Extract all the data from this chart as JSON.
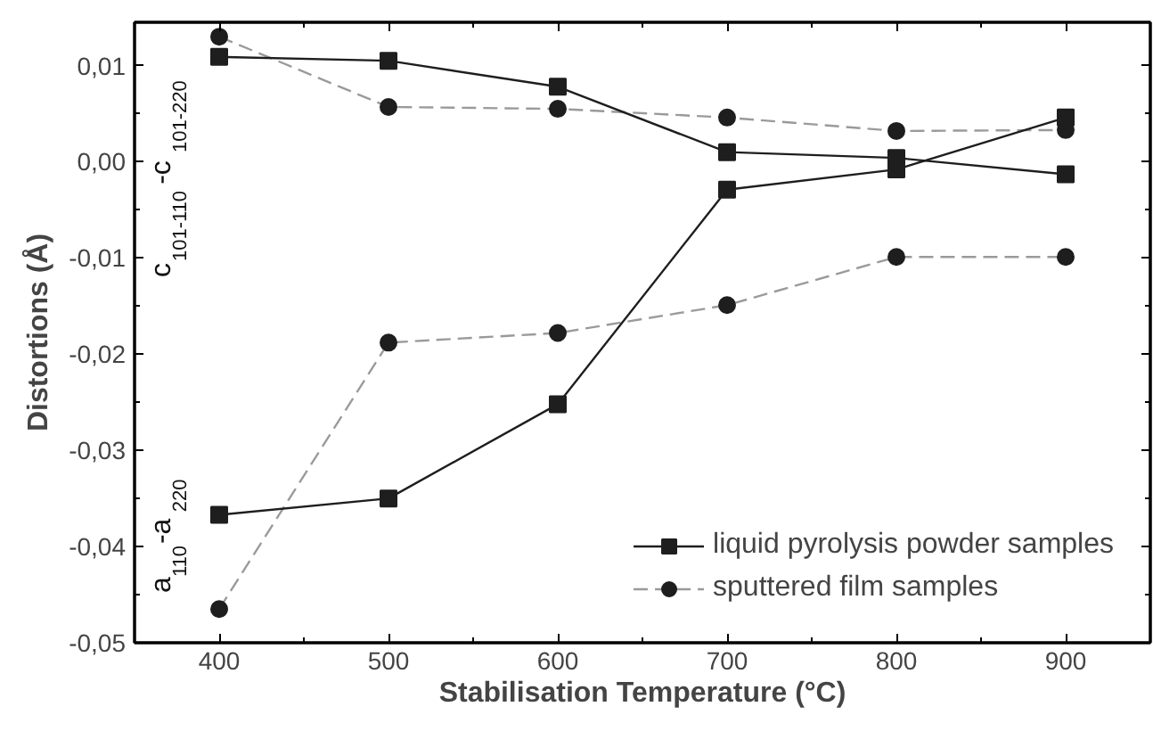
{
  "chart_data": {
    "type": "line",
    "xlabel": "Stabilisation Temperature (°C)",
    "ylabel": "Distortions (Å)",
    "x": [
      400,
      500,
      600,
      700,
      800,
      900
    ],
    "series": [
      {
        "name": "liquid pyrolysis powder samples",
        "color": "#1e1e1e",
        "marker": "square",
        "line_style": "solid",
        "values": [
          0.0109,
          0.0105,
          0.0078,
          0.001,
          0.0004,
          -0.0013
        ]
      },
      {
        "name": "sputtered film samples",
        "color": "#1e1e1e",
        "marker": "circle",
        "line_style": "dashed",
        "values": [
          0.013,
          0.0057,
          0.0055,
          0.0046,
          0.0032,
          0.0033
        ]
      },
      {
        "color": "#1e1e1e",
        "marker": "square",
        "line_style": "solid",
        "values": [
          -0.0367,
          -0.035,
          -0.0252,
          -0.0029,
          -0.0008,
          0.0046
        ]
      },
      {
        "color": "#1e1e1e",
        "marker": "circle",
        "line_style": "dashed",
        "values": [
          -0.0465,
          -0.0188,
          -0.0178,
          -0.0149,
          -0.0099,
          -0.0099
        ]
      }
    ],
    "xlim": [
      350,
      950
    ],
    "ylim": [
      -0.05,
      0.0145
    ],
    "xticks": [
      400,
      500,
      600,
      700,
      800,
      900,
      {
        "value": 450,
        "label": null
      },
      {
        "value": 550,
        "label": null
      },
      {
        "value": 650,
        "label": null
      },
      {
        "value": 750,
        "label": null
      },
      {
        "value": 850,
        "label": null
      }
    ],
    "yticks": [
      {
        "value": -0.05,
        "label": "-0,05"
      },
      {
        "value": -0.04,
        "label": "-0,04"
      },
      {
        "value": -0.03,
        "label": "-0,03"
      },
      {
        "value": -0.02,
        "label": "-0,02"
      },
      {
        "value": -0.01,
        "label": "-0,01"
      },
      {
        "value": 0.0,
        "label": "0,00"
      },
      {
        "value": 0.01,
        "label": "0,01"
      },
      {
        "value": -0.045,
        "label": null
      },
      {
        "value": -0.035,
        "label": null
      },
      {
        "value": -0.025,
        "label": null
      },
      {
        "value": -0.015,
        "label": null
      },
      {
        "value": -0.005,
        "label": null
      },
      {
        "value": 0.005,
        "label": null
      }
    ],
    "annotations": [
      "c$_{101-110}$-c$_{101-220}$",
      "a$_{110}$-a$_{220}$"
    ],
    "grid": false,
    "legend": "bottom right"
  }
}
